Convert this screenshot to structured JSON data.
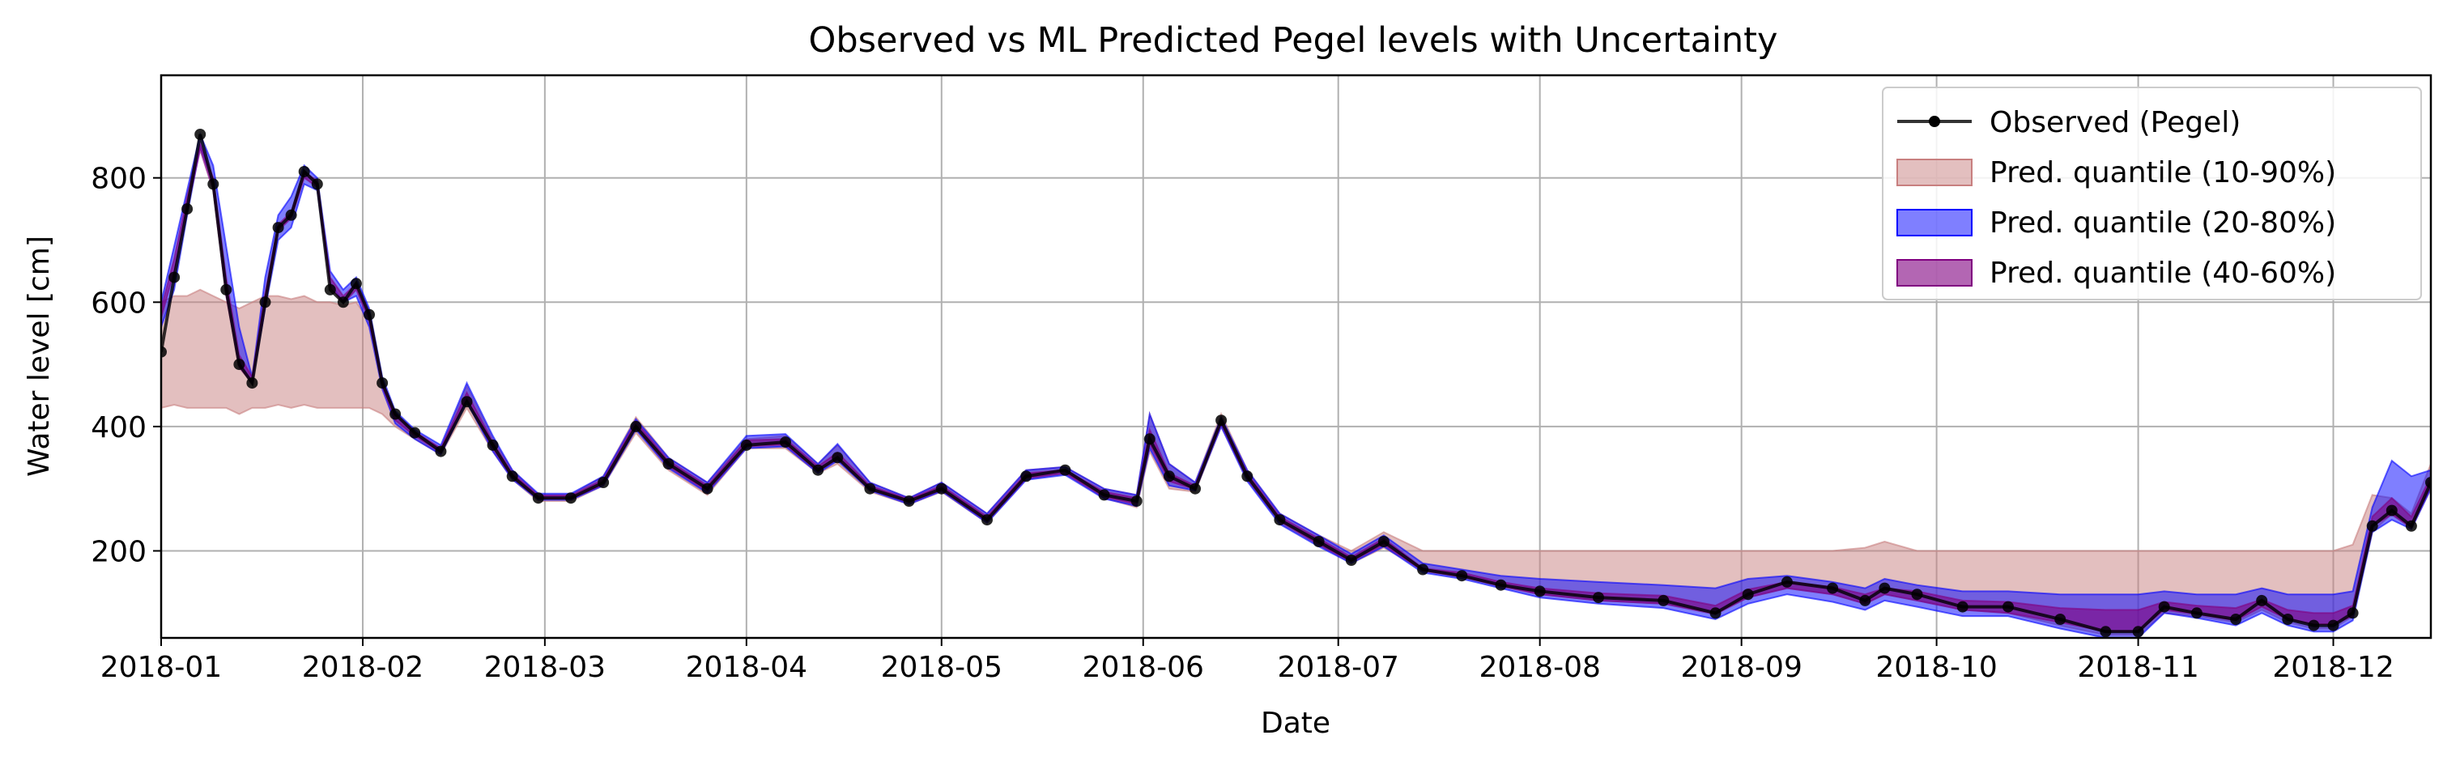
{
  "chart_data": {
    "type": "area",
    "title": "Observed vs ML Predicted Pegel levels with Uncertainty",
    "xlabel": "Date",
    "ylabel": "Water level [cm]",
    "xlim": [
      "2018-01-01",
      "2018-12-16"
    ],
    "ylim": [
      60,
      965
    ],
    "grid": true,
    "legend_position": "top-right",
    "x_ticks": [
      "2018-01",
      "2018-02",
      "2018-03",
      "2018-04",
      "2018-05",
      "2018-06",
      "2018-07",
      "2018-08",
      "2018-09",
      "2018-10",
      "2018-11",
      "2018-12"
    ],
    "y_ticks": [
      200,
      400,
      600,
      800
    ],
    "x": [
      "2018-01-01",
      "2018-01-03",
      "2018-01-05",
      "2018-01-07",
      "2018-01-09",
      "2018-01-11",
      "2018-01-13",
      "2018-01-15",
      "2018-01-17",
      "2018-01-19",
      "2018-01-21",
      "2018-01-23",
      "2018-01-25",
      "2018-01-27",
      "2018-01-29",
      "2018-01-31",
      "2018-02-02",
      "2018-02-04",
      "2018-02-06",
      "2018-02-09",
      "2018-02-13",
      "2018-02-17",
      "2018-02-21",
      "2018-02-24",
      "2018-02-28",
      "2018-03-05",
      "2018-03-10",
      "2018-03-15",
      "2018-03-20",
      "2018-03-26",
      "2018-04-01",
      "2018-04-07",
      "2018-04-12",
      "2018-04-15",
      "2018-04-20",
      "2018-04-26",
      "2018-05-01",
      "2018-05-08",
      "2018-05-14",
      "2018-05-20",
      "2018-05-26",
      "2018-05-31",
      "2018-06-02",
      "2018-06-05",
      "2018-06-09",
      "2018-06-13",
      "2018-06-17",
      "2018-06-22",
      "2018-06-28",
      "2018-07-03",
      "2018-07-08",
      "2018-07-14",
      "2018-07-20",
      "2018-07-26",
      "2018-08-01",
      "2018-08-10",
      "2018-08-20",
      "2018-08-28",
      "2018-09-02",
      "2018-09-08",
      "2018-09-15",
      "2018-09-20",
      "2018-09-23",
      "2018-09-28",
      "2018-10-05",
      "2018-10-12",
      "2018-10-20",
      "2018-10-27",
      "2018-11-01",
      "2018-11-05",
      "2018-11-10",
      "2018-11-16",
      "2018-11-20",
      "2018-11-24",
      "2018-11-28",
      "2018-12-01",
      "2018-12-04",
      "2018-12-07",
      "2018-12-10",
      "2018-12-13",
      "2018-12-16"
    ],
    "series": [
      {
        "name": "Observed (Pegel)",
        "style": "line-with-markers",
        "color": "#000000",
        "values": [
          520,
          640,
          750,
          870,
          790,
          620,
          500,
          470,
          600,
          720,
          740,
          810,
          790,
          620,
          600,
          630,
          580,
          470,
          420,
          390,
          360,
          440,
          370,
          320,
          285,
          285,
          310,
          400,
          340,
          300,
          370,
          375,
          330,
          350,
          300,
          280,
          300,
          250,
          320,
          330,
          290,
          280,
          380,
          320,
          300,
          410,
          320,
          250,
          215,
          185,
          215,
          170,
          160,
          145,
          135,
          125,
          120,
          100,
          130,
          150,
          140,
          120,
          140,
          130,
          110,
          110,
          90,
          70,
          70,
          110,
          100,
          90,
          120,
          90,
          80,
          80,
          100,
          240,
          265,
          240,
          310
        ]
      },
      {
        "name": "Pred. quantile (10-90%)",
        "style": "band",
        "color": "#c87f7f",
        "lower": [
          430,
          435,
          430,
          430,
          430,
          430,
          420,
          430,
          430,
          435,
          430,
          435,
          430,
          430,
          430,
          430,
          430,
          420,
          400,
          380,
          355,
          430,
          360,
          315,
          280,
          280,
          305,
          390,
          330,
          290,
          365,
          365,
          325,
          340,
          295,
          275,
          295,
          245,
          315,
          325,
          285,
          270,
          360,
          300,
          295,
          400,
          315,
          245,
          210,
          180,
          205,
          170,
          160,
          145,
          130,
          120,
          115,
          100,
          125,
          140,
          130,
          115,
          130,
          120,
          105,
          100,
          80,
          65,
          65,
          100,
          95,
          85,
          105,
          85,
          75,
          75,
          95,
          230,
          260,
          235,
          300
        ],
        "upper": [
          600,
          610,
          610,
          620,
          610,
          600,
          590,
          600,
          610,
          610,
          605,
          610,
          600,
          600,
          595,
          600,
          570,
          470,
          420,
          390,
          365,
          465,
          380,
          330,
          290,
          290,
          320,
          415,
          350,
          310,
          380,
          385,
          340,
          370,
          310,
          285,
          310,
          260,
          330,
          335,
          300,
          290,
          420,
          340,
          310,
          420,
          330,
          260,
          225,
          200,
          230,
          200,
          200,
          200,
          200,
          200,
          200,
          200,
          200,
          200,
          200,
          205,
          215,
          200,
          200,
          200,
          200,
          200,
          200,
          200,
          200,
          200,
          200,
          200,
          200,
          200,
          210,
          290,
          285,
          260,
          340
        ]
      },
      {
        "name": "Pred. quantile (20-80%)",
        "style": "band",
        "color": "#0000ff",
        "lower": [
          560,
          620,
          740,
          850,
          790,
          620,
          500,
          470,
          590,
          700,
          720,
          790,
          780,
          630,
          600,
          610,
          560,
          460,
          405,
          380,
          355,
          440,
          360,
          315,
          282,
          282,
          305,
          395,
          333,
          293,
          365,
          368,
          325,
          345,
          297,
          275,
          296,
          245,
          314,
          322,
          284,
          272,
          365,
          305,
          297,
          400,
          312,
          243,
          207,
          180,
          207,
          165,
          155,
          140,
          125,
          115,
          108,
          90,
          115,
          130,
          118,
          105,
          120,
          110,
          95,
          95,
          75,
          60,
          60,
          100,
          92,
          80,
          100,
          80,
          70,
          70,
          88,
          230,
          250,
          235,
          300
        ],
        "upper": [
          600,
          690,
          780,
          870,
          820,
          690,
          560,
          480,
          640,
          740,
          770,
          820,
          800,
          650,
          620,
          640,
          590,
          480,
          425,
          395,
          370,
          470,
          385,
          330,
          292,
          292,
          320,
          412,
          350,
          310,
          385,
          388,
          340,
          372,
          310,
          285,
          310,
          260,
          330,
          335,
          300,
          290,
          420,
          340,
          310,
          415,
          330,
          260,
          225,
          195,
          225,
          180,
          170,
          160,
          155,
          150,
          145,
          140,
          155,
          160,
          150,
          140,
          155,
          145,
          135,
          135,
          130,
          130,
          130,
          135,
          130,
          130,
          140,
          130,
          130,
          130,
          135,
          270,
          345,
          320,
          330
        ]
      },
      {
        "name": "Pred. quantile (40-60%)",
        "style": "band",
        "color": "#800080",
        "lower": [
          575,
          650,
          750,
          845,
          780,
          610,
          495,
          470,
          595,
          715,
          735,
          800,
          785,
          625,
          598,
          620,
          570,
          465,
          410,
          385,
          358,
          445,
          365,
          318,
          284,
          284,
          307,
          398,
          336,
          296,
          368,
          371,
          328,
          348,
          299,
          278,
          298,
          248,
          317,
          325,
          287,
          275,
          372,
          312,
          299,
          405,
          316,
          248,
          210,
          183,
          210,
          168,
          158,
          143,
          130,
          120,
          115,
          98,
          125,
          140,
          130,
          115,
          130,
          120,
          105,
          100,
          85,
          70,
          70,
          105,
          98,
          88,
          110,
          90,
          82,
          82,
          95,
          240,
          258,
          238,
          305
        ],
        "upper": [
          590,
          670,
          770,
          855,
          800,
          640,
          515,
          480,
          615,
          725,
          745,
          810,
          795,
          640,
          610,
          630,
          582,
          475,
          420,
          392,
          365,
          455,
          375,
          325,
          289,
          289,
          315,
          408,
          345,
          305,
          378,
          380,
          336,
          358,
          305,
          283,
          305,
          255,
          325,
          330,
          295,
          285,
          395,
          325,
          305,
          412,
          325,
          255,
          220,
          190,
          220,
          172,
          165,
          150,
          140,
          132,
          128,
          112,
          138,
          150,
          142,
          130,
          140,
          135,
          120,
          118,
          108,
          105,
          105,
          118,
          112,
          108,
          122,
          105,
          100,
          100,
          112,
          255,
          285,
          255,
          320
        ]
      }
    ]
  }
}
